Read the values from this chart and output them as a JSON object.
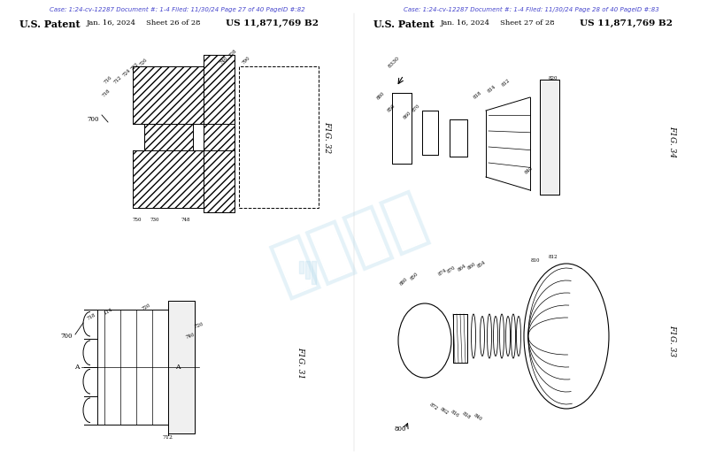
{
  "bg_color": "#ffffff",
  "left_case_text": "Case: 1:24-cv-12287 Document #: 1-4 Filed: 11/30/24 Page 27 of 40 PageID #:82",
  "right_case_text": "Case: 1:24-cv-12287 Document #: 1-4 Filed: 11/30/24 Page 28 of 40 PageID #:83",
  "case_color": "#4444cc",
  "watermark_text": "麦家支持",
  "watermark_color": "#a8d4e8",
  "watermark_alpha": 0.3,
  "fig_width": 8.0,
  "fig_height": 5.2,
  "dpi": 100
}
